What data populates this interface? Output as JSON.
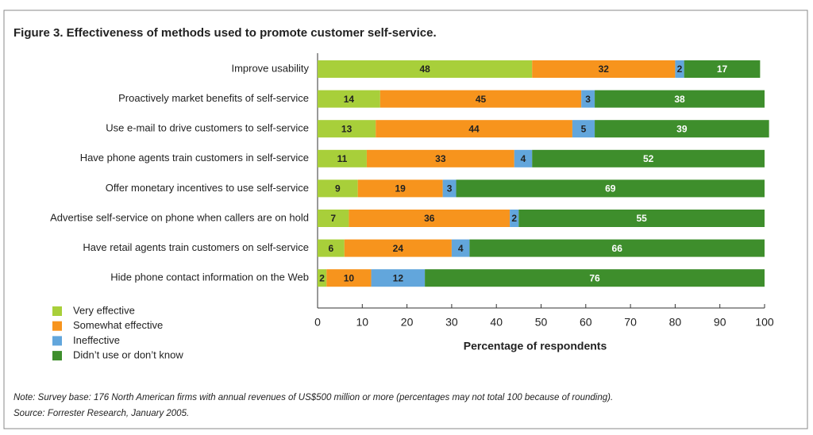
{
  "chart_data": {
    "type": "stacked-bar-horizontal",
    "title": "Figure 3. Effectiveness of methods used to promote customer self-service.",
    "categories": [
      "Improve usability",
      "Proactively market benefits of self-service",
      "Use e-mail to drive customers to self-service",
      "Have phone agents train customers in self-service",
      "Offer monetary incentives to use self-service",
      "Advertise self-service on phone when callers are on hold",
      "Have retail agents train customers on self-service",
      "Hide phone contact information on the Web"
    ],
    "series": [
      {
        "name": "Very effective",
        "color": "#a8cf3a",
        "values": [
          48,
          14,
          13,
          11,
          9,
          7,
          6,
          2
        ]
      },
      {
        "name": "Somewhat effective",
        "color": "#f7941d",
        "values": [
          32,
          45,
          44,
          33,
          19,
          36,
          24,
          10
        ]
      },
      {
        "name": "Ineffective",
        "color": "#62a6dc",
        "values": [
          2,
          3,
          5,
          4,
          3,
          2,
          4,
          12
        ]
      },
      {
        "name": "Didn’t use or don’t know",
        "color": "#3e8e2c",
        "values": [
          17,
          38,
          39,
          52,
          69,
          55,
          66,
          76
        ]
      }
    ],
    "xlabel": "Percentage of respondents",
    "xlim": [
      0,
      100
    ],
    "xticks": [
      0,
      10,
      20,
      30,
      40,
      50,
      60,
      70,
      80,
      90,
      100
    ],
    "notes": [
      "Note: Survey base: 176 North American firms with annual revenues of US$500 million or more (percentages may not total 100 because of rounding).",
      "Source: Forrester Research, January 2005."
    ]
  }
}
